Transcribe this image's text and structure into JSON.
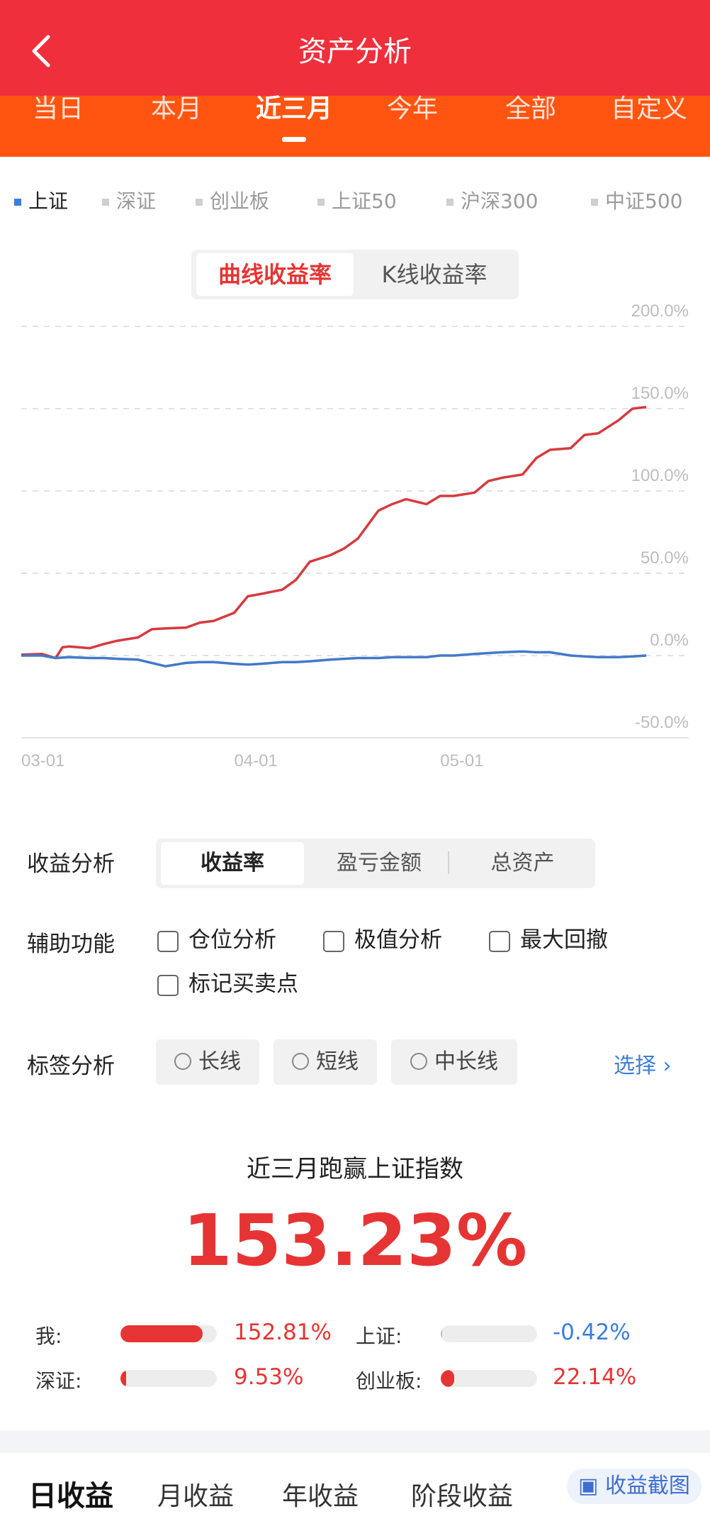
{
  "header": {
    "title": "资产分析",
    "back_icon": "chevron-left-icon"
  },
  "period_tabs": [
    {
      "label": "当日",
      "active": false
    },
    {
      "label": "本月",
      "active": false
    },
    {
      "label": "近三月",
      "active": true
    },
    {
      "label": "今年",
      "active": false
    },
    {
      "label": "全部",
      "active": false
    },
    {
      "label": "自定义",
      "active": false
    }
  ],
  "index_tabs": [
    {
      "label": "上证",
      "active": true
    },
    {
      "label": "深证",
      "active": false
    },
    {
      "label": "创业板",
      "active": false
    },
    {
      "label": "上证50",
      "active": false
    },
    {
      "label": "沪深300",
      "active": false
    },
    {
      "label": "中证500",
      "active": false
    }
  ],
  "chart_toggle": {
    "options": [
      "曲线收益率",
      "K线收益率"
    ],
    "active": 0
  },
  "chart_data": {
    "type": "line",
    "y_ticks": [
      "200.0%",
      "150.0%",
      "100.0%",
      "50.0%",
      "0.0%",
      "-50.0%"
    ],
    "ylim": [
      -50,
      200
    ],
    "x_ticks": [
      {
        "label": "03-01",
        "x": "2024-03-01"
      },
      {
        "label": "04-01",
        "x": "2024-04-01"
      },
      {
        "label": "05-01",
        "x": "2024-05-01"
      }
    ],
    "xlim": [
      "2024-03-01",
      "2024-05-31"
    ],
    "grid": true,
    "series": [
      {
        "color": "#d63a3e",
        "x": [
          "2024-03-01",
          "2024-03-04",
          "2024-03-06",
          "2024-03-07",
          "2024-03-08",
          "2024-03-11",
          "2024-03-13",
          "2024-03-15",
          "2024-03-18",
          "2024-03-20",
          "2024-03-22",
          "2024-03-25",
          "2024-03-27",
          "2024-03-29",
          "2024-04-01",
          "2024-04-03",
          "2024-04-05",
          "2024-04-08",
          "2024-04-10",
          "2024-04-12",
          "2024-04-15",
          "2024-04-17",
          "2024-04-19",
          "2024-04-22",
          "2024-04-24",
          "2024-04-26",
          "2024-04-29",
          "2024-05-01",
          "2024-05-03",
          "2024-05-06",
          "2024-05-08",
          "2024-05-10",
          "2024-05-13",
          "2024-05-15",
          "2024-05-17",
          "2024-05-20",
          "2024-05-22",
          "2024-05-24",
          "2024-05-27",
          "2024-05-29",
          "2024-05-31"
        ],
        "values": [
          0.5,
          1,
          -1.5,
          5,
          5.5,
          4.5,
          7,
          9,
          11,
          16,
          16.5,
          17,
          20,
          21,
          26,
          36,
          37.5,
          40,
          46,
          57,
          61,
          65,
          71,
          88,
          92,
          95,
          92,
          97,
          97,
          99,
          106,
          108,
          110,
          120,
          125,
          126,
          134,
          135,
          143,
          150,
          151
        ]
      },
      {
        "color": "#4479c9",
        "x": [
          "2024-03-01",
          "2024-03-04",
          "2024-03-06",
          "2024-03-08",
          "2024-03-11",
          "2024-03-13",
          "2024-03-15",
          "2024-03-18",
          "2024-03-20",
          "2024-03-22",
          "2024-03-25",
          "2024-03-27",
          "2024-03-29",
          "2024-04-01",
          "2024-04-03",
          "2024-04-05",
          "2024-04-08",
          "2024-04-10",
          "2024-04-12",
          "2024-04-15",
          "2024-04-17",
          "2024-04-19",
          "2024-04-22",
          "2024-04-24",
          "2024-04-26",
          "2024-04-29",
          "2024-05-01",
          "2024-05-03",
          "2024-05-06",
          "2024-05-08",
          "2024-05-10",
          "2024-05-13",
          "2024-05-15",
          "2024-05-17",
          "2024-05-20",
          "2024-05-22",
          "2024-05-24",
          "2024-05-27",
          "2024-05-29",
          "2024-05-31"
        ],
        "values": [
          0,
          0,
          -1.5,
          -1,
          -1.5,
          -1.5,
          -2,
          -2.5,
          -4.5,
          -6.5,
          -4.5,
          -4,
          -4,
          -5,
          -5.5,
          -5,
          -4,
          -4,
          -3.5,
          -2.5,
          -2,
          -1.5,
          -1.5,
          -1,
          -1,
          -1,
          0,
          0,
          1,
          1.5,
          2,
          2.5,
          2,
          2,
          0,
          -0.5,
          -1,
          -1,
          -0.5,
          0
        ]
      }
    ]
  },
  "earnings_analysis": {
    "label": "收益分析",
    "options": [
      "收益率",
      "盈亏金额",
      "总资产"
    ],
    "active": 0
  },
  "aux_functions": {
    "label": "辅助功能",
    "options": [
      "仓位分析",
      "极值分析",
      "最大回撤",
      "标记买卖点"
    ]
  },
  "tag_analysis": {
    "label": "标签分析",
    "options": [
      "长线",
      "短线",
      "中长线"
    ],
    "select_label": "选择"
  },
  "win": {
    "title": "近三月跑赢上证指数",
    "value": "153.23%"
  },
  "comparison": [
    {
      "label": "我:",
      "value": "152.81%",
      "fill": 0.85,
      "dir": "pos"
    },
    {
      "label": "上证:",
      "value": "-0.42%",
      "fill": 0.0,
      "dir": "neg"
    },
    {
      "label": "深证:",
      "value": "9.53%",
      "fill": 0.06,
      "dir": "pos"
    },
    {
      "label": "创业板:",
      "value": "22.14%",
      "fill": 0.14,
      "dir": "pos"
    }
  ],
  "bottom_tabs": [
    {
      "label": "日收益",
      "active": true
    },
    {
      "label": "月收益",
      "active": false
    },
    {
      "label": "年收益",
      "active": false
    },
    {
      "label": "阶段收益",
      "active": false
    }
  ],
  "floating_button": {
    "label": "收益截图"
  }
}
